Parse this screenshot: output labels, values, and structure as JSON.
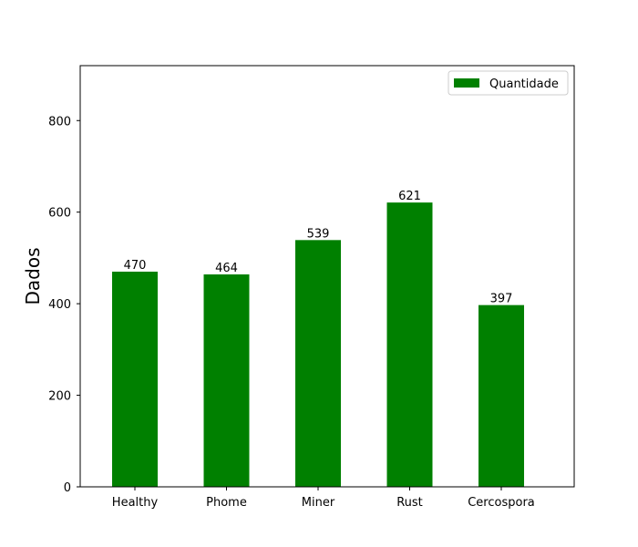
{
  "chart_data": {
    "type": "bar",
    "categories": [
      "Healthy",
      "Phome",
      "Miner",
      "Rust",
      "Cercospora"
    ],
    "series": [
      {
        "name": "Quantidade",
        "values": [
          470,
          464,
          539,
          621,
          397
        ]
      }
    ],
    "data_labels": [
      "470",
      "464",
      "539",
      "621",
      "397"
    ],
    "title": "",
    "xlabel": "",
    "ylabel": "Dados",
    "ylim": [
      0,
      920
    ],
    "yticks": [
      0,
      200,
      400,
      600,
      800
    ],
    "grid": false,
    "legend_position": "upper right",
    "bar_color": "#008000"
  }
}
